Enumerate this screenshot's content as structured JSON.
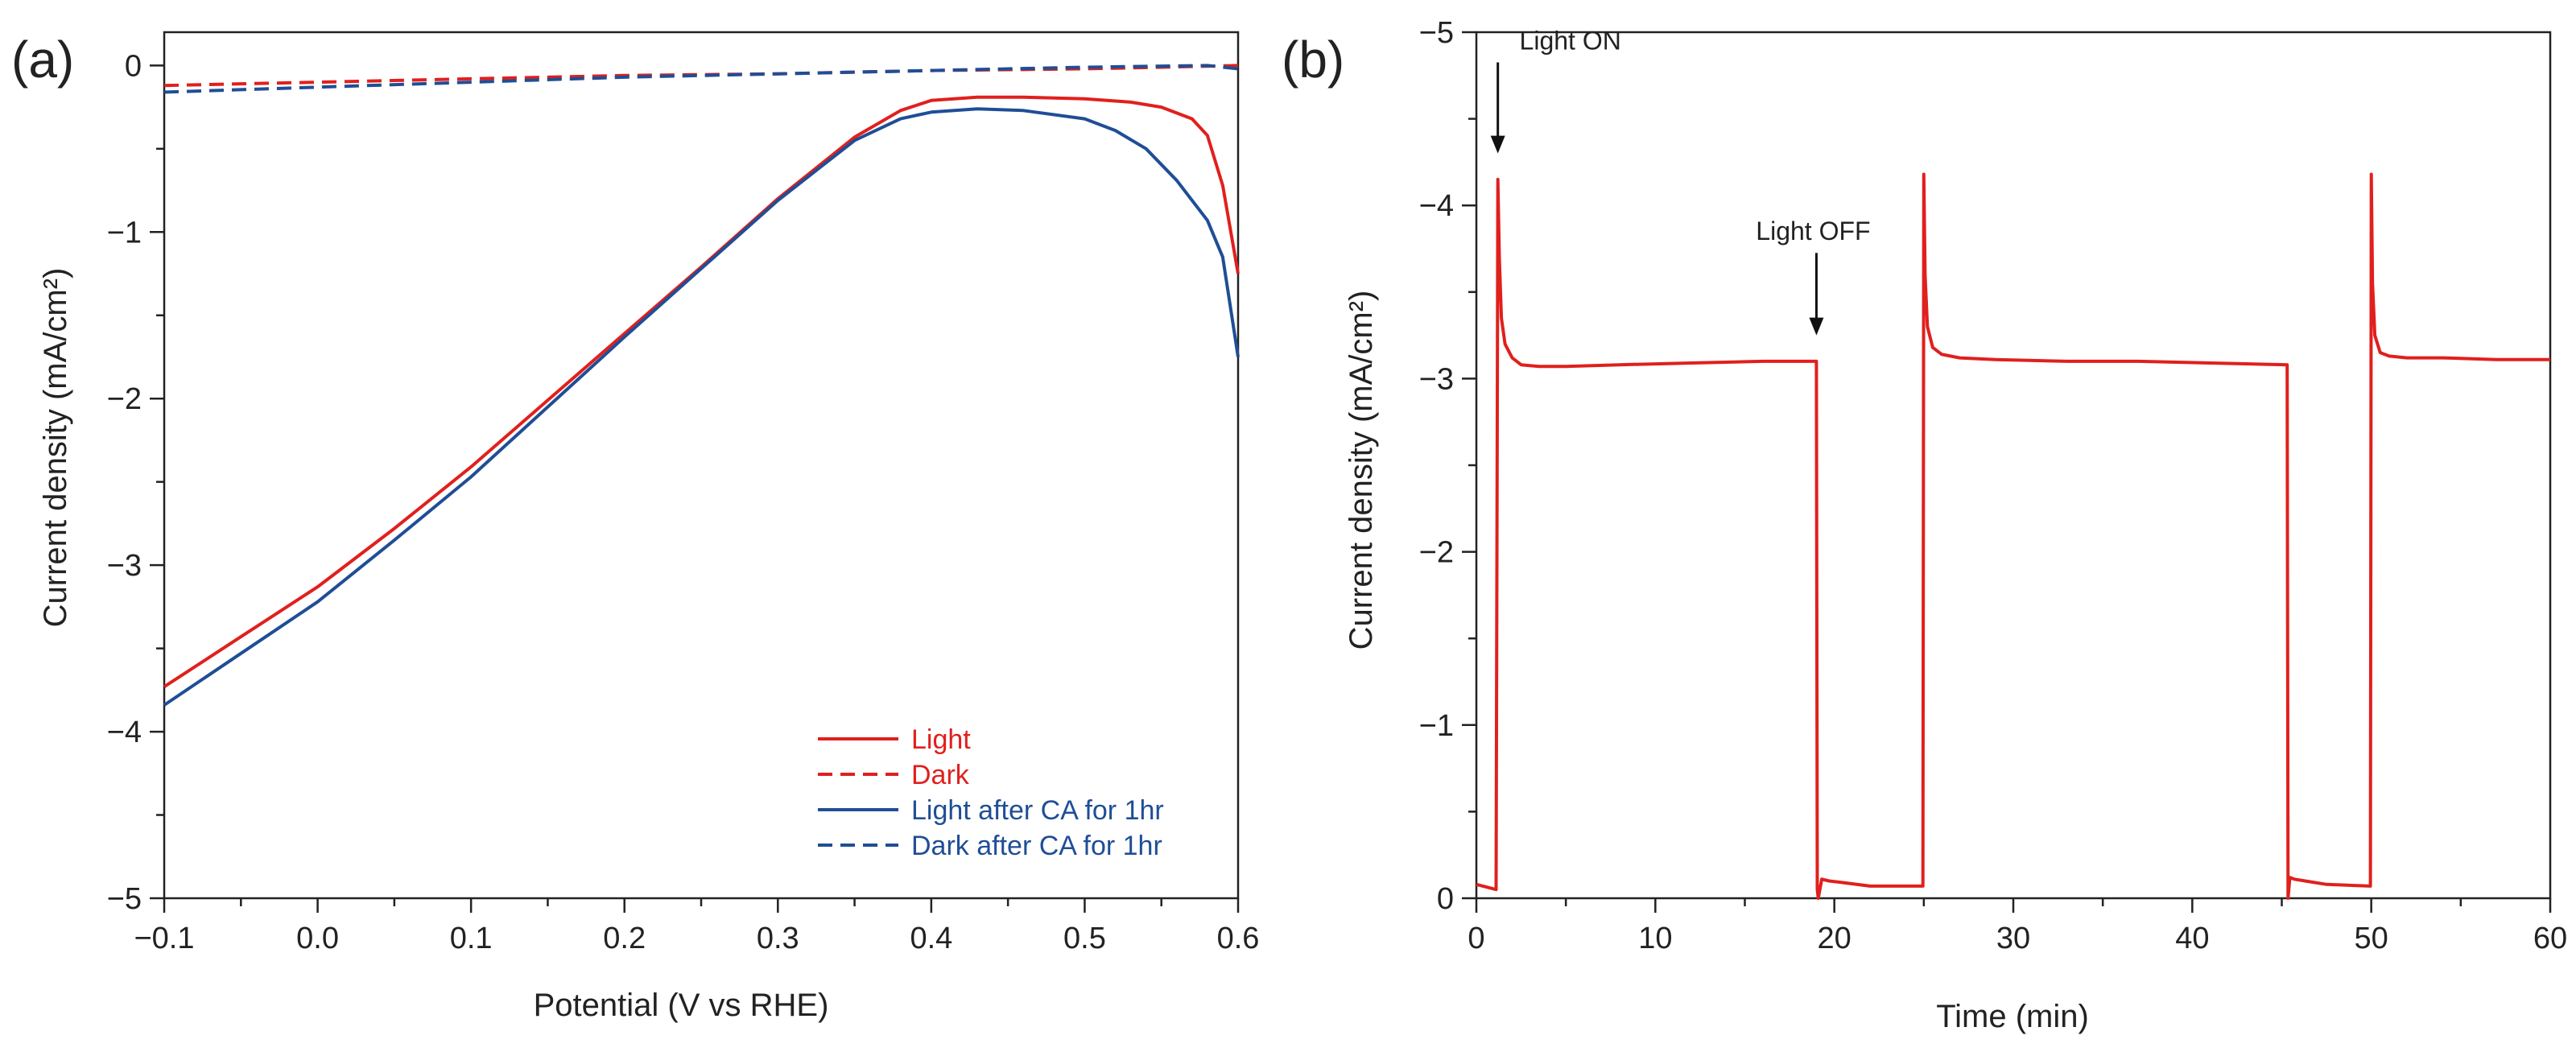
{
  "chart_data": [
    {
      "panel": "(a)",
      "type": "line",
      "xlabel": "Potential (V vs RHE)",
      "ylabel": "Current density (mA/cm²)",
      "xlim": [
        -0.1,
        0.6
      ],
      "ylim": [
        -5,
        0.2
      ],
      "y_axis_reversed": false,
      "grid": false,
      "legend_position": "bottom-right",
      "x_ticks": [
        -0.1,
        0.0,
        0.1,
        0.2,
        0.3,
        0.4,
        0.5,
        0.6
      ],
      "x_tick_labels": [
        "−0.1",
        "0.0",
        "0.1",
        "0.2",
        "0.3",
        "0.4",
        "0.5",
        "0.6"
      ],
      "y_ticks": [
        0,
        -1,
        -2,
        -3,
        -4,
        -5
      ],
      "y_tick_labels": [
        "0",
        "−1",
        "−2",
        "−3",
        "−4",
        "−5"
      ],
      "series": [
        {
          "name": "Light",
          "color": "#e0201d",
          "dash": "solid",
          "x": [
            -0.1,
            -0.05,
            0.0,
            0.05,
            0.1,
            0.15,
            0.2,
            0.25,
            0.3,
            0.35,
            0.38,
            0.4,
            0.43,
            0.46,
            0.5,
            0.53,
            0.55,
            0.57,
            0.58,
            0.59,
            0.6
          ],
          "y": [
            -3.73,
            -3.43,
            -3.13,
            -2.78,
            -2.41,
            -2.01,
            -1.61,
            -1.21,
            -0.8,
            -0.43,
            -0.27,
            -0.21,
            -0.19,
            -0.19,
            -0.2,
            -0.22,
            -0.25,
            -0.32,
            -0.42,
            -0.72,
            -1.25
          ]
        },
        {
          "name": "Dark",
          "color": "#e0201d",
          "dash": "dashed",
          "x": [
            -0.1,
            0.0,
            0.1,
            0.2,
            0.3,
            0.4,
            0.5,
            0.55,
            0.6
          ],
          "y": [
            -0.12,
            -0.1,
            -0.08,
            -0.06,
            -0.05,
            -0.03,
            -0.02,
            -0.01,
            0.0
          ]
        },
        {
          "name": "Light after CA for 1hr",
          "color": "#1f4e96",
          "dash": "solid",
          "x": [
            -0.1,
            -0.05,
            0.0,
            0.05,
            0.1,
            0.15,
            0.2,
            0.25,
            0.3,
            0.35,
            0.38,
            0.4,
            0.43,
            0.46,
            0.5,
            0.52,
            0.54,
            0.56,
            0.58,
            0.59,
            0.6
          ],
          "y": [
            -3.84,
            -3.53,
            -3.22,
            -2.85,
            -2.47,
            -2.05,
            -1.63,
            -1.22,
            -0.81,
            -0.45,
            -0.32,
            -0.28,
            -0.26,
            -0.27,
            -0.32,
            -0.39,
            -0.5,
            -0.69,
            -0.93,
            -1.15,
            -1.75
          ]
        },
        {
          "name": "Dark after CA for 1hr",
          "color": "#1f4e96",
          "dash": "dashed",
          "x": [
            -0.1,
            0.0,
            0.1,
            0.2,
            0.3,
            0.4,
            0.5,
            0.58,
            0.6
          ],
          "y": [
            -0.16,
            -0.13,
            -0.1,
            -0.07,
            -0.05,
            -0.03,
            -0.01,
            0.0,
            -0.02
          ]
        }
      ]
    },
    {
      "panel": "(b)",
      "type": "line",
      "xlabel": "Time (min)",
      "ylabel": "Current density (mA/cm²)",
      "xlim": [
        0,
        60
      ],
      "ylim": [
        0,
        -5
      ],
      "y_axis_reversed": true,
      "grid": false,
      "x_ticks": [
        0,
        10,
        20,
        30,
        40,
        50,
        60
      ],
      "x_tick_labels": [
        "0",
        "10",
        "20",
        "30",
        "40",
        "50",
        "60"
      ],
      "y_ticks": [
        0,
        -1,
        -2,
        -3,
        -4,
        -5
      ],
      "y_tick_labels": [
        "0",
        "−1",
        "−2",
        "−3",
        "−4",
        "−5"
      ],
      "series": [
        {
          "color": "#e0201d",
          "x": [
            0,
            1.1,
            1.2,
            1.28,
            1.4,
            1.6,
            2.0,
            2.5,
            3.5,
            5,
            8,
            12,
            16,
            19.0,
            19.05,
            19.1,
            19.3,
            19.7,
            20.5,
            22,
            24.95,
            25.0,
            25.07,
            25.2,
            25.5,
            26,
            27,
            29,
            33,
            37,
            41,
            45.3,
            45.35,
            45.45,
            45.7,
            46.3,
            47.5,
            49.95,
            50.0,
            50.07,
            50.2,
            50.5,
            51,
            52,
            54,
            57,
            60
          ],
          "y": [
            -0.08,
            -0.05,
            -4.15,
            -3.7,
            -3.35,
            -3.2,
            -3.12,
            -3.08,
            -3.07,
            -3.07,
            -3.08,
            -3.09,
            -3.1,
            -3.1,
            -0.05,
            0.0,
            -0.11,
            -0.1,
            -0.09,
            -0.07,
            -0.07,
            -4.18,
            -3.6,
            -3.3,
            -3.18,
            -3.14,
            -3.12,
            -3.11,
            -3.1,
            -3.1,
            -3.09,
            -3.08,
            0.0,
            -0.12,
            -0.11,
            -0.1,
            -0.08,
            -0.07,
            -4.18,
            -3.55,
            -3.25,
            -3.15,
            -3.13,
            -3.12,
            -3.12,
            -3.11,
            -3.11
          ]
        }
      ],
      "annotations": [
        {
          "text": "Light ON",
          "x": 1.2,
          "y_arrow_tip": -4.3,
          "y_text": -4.9
        },
        {
          "text": "Light OFF",
          "x": 19.0,
          "y_arrow_tip": -3.25,
          "y_text": -3.8
        }
      ]
    }
  ]
}
